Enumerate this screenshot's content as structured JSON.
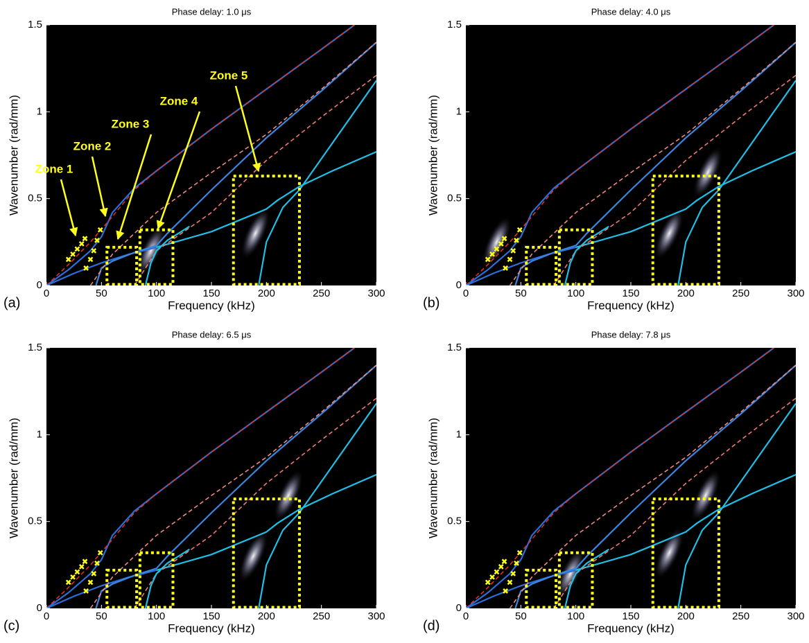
{
  "chart_data": [
    {
      "type": "line",
      "panel_label": "(a)",
      "title": "Phase delay: 1.0 μs",
      "x_label": "Frequency (kHz)",
      "y_label": "Wavenumber (rad/mm)",
      "xlim": [
        0,
        300
      ],
      "ylim": [
        0,
        1.5
      ],
      "xticks": [
        0,
        50,
        100,
        150,
        200,
        250,
        300
      ],
      "yticks": [
        0,
        0.5,
        1,
        1.5
      ],
      "annotations": [
        "Zone 1",
        "Zone 2",
        "Zone 3",
        "Zone 4",
        "Zone 5"
      ],
      "heatmap_peaks": {
        "x": [
          95,
          190
        ],
        "y": [
          0.2,
          0.3
        ]
      },
      "markers": {
        "color": "#ffff1a",
        "x": [
          20,
          24,
          28,
          32,
          35,
          36,
          40,
          43,
          46,
          49
        ],
        "y": [
          0.15,
          0.18,
          0.21,
          0.24,
          0.27,
          0.1,
          0.15,
          0.2,
          0.26,
          0.32
        ]
      },
      "boxes": [
        {
          "x": [
            55,
            82
          ],
          "y": [
            0,
            0.22
          ]
        },
        {
          "x": [
            85,
            115
          ],
          "y": [
            0,
            0.32
          ]
        },
        {
          "x": [
            170,
            230
          ],
          "y": [
            0,
            0.63
          ]
        }
      ],
      "series": [
        {
          "color": "#2a6fdb",
          "x": [
            0,
            20,
            40,
            50,
            60,
            80,
            100,
            150,
            200,
            250,
            280
          ],
          "values": [
            0,
            0.09,
            0.2,
            0.28,
            0.42,
            0.56,
            0.66,
            0.9,
            1.13,
            1.36,
            1.5
          ]
        },
        {
          "color": "#e0302a",
          "dashed": true,
          "x": [
            0,
            20,
            40,
            55,
            80,
            100,
            150,
            200,
            250,
            280
          ],
          "values": [
            0,
            0.12,
            0.25,
            0.36,
            0.55,
            0.66,
            0.9,
            1.13,
            1.36,
            1.5
          ]
        },
        {
          "color": "#2a6fdb",
          "x": [
            0,
            25,
            50,
            75,
            100
          ],
          "values": [
            0,
            0.07,
            0.13,
            0.18,
            0.22
          ]
        },
        {
          "color": "#1fc0e8",
          "x": [
            100,
            150,
            200,
            210,
            230,
            260,
            300
          ],
          "values": [
            0.22,
            0.31,
            0.44,
            0.49,
            0.57,
            0.66,
            0.77
          ]
        },
        {
          "color": "#3a86e0",
          "x": [
            45,
            50,
            60,
            80,
            100,
            110,
            150,
            200,
            250,
            300
          ],
          "values": [
            0,
            0.1,
            0.14,
            0.19,
            0.23,
            0.3,
            0.55,
            0.85,
            1.12,
            1.4
          ]
        },
        {
          "color": "#f08a80",
          "dashed": true,
          "x": [
            40,
            60,
            80,
            100,
            150,
            200,
            250,
            300
          ],
          "values": [
            0,
            0.18,
            0.3,
            0.42,
            0.65,
            0.87,
            1.13,
            1.4
          ]
        },
        {
          "color": "#f07a70",
          "dashed": true,
          "x": [
            80,
            100,
            150,
            200,
            250,
            300
          ],
          "values": [
            0,
            0.2,
            0.42,
            0.72,
            0.97,
            1.21
          ]
        },
        {
          "color": "#1fc0e8",
          "x": [
            90,
            95,
            100,
            110,
            130
          ],
          "values": [
            0,
            0.13,
            0.2,
            0.26,
            0.34
          ]
        },
        {
          "color": "#1fc0e8",
          "x": [
            193,
            200,
            215,
            230,
            260,
            300
          ],
          "values": [
            0,
            0.25,
            0.45,
            0.55,
            0.82,
            1.18
          ]
        }
      ]
    },
    {
      "type": "line",
      "panel_label": "(b)",
      "title": "Phase delay: 4.0 μs",
      "x_label": "Frequency (kHz)",
      "y_label": "Wavenumber (rad/mm)",
      "xlim": [
        0,
        300
      ],
      "ylim": [
        0,
        1.5
      ],
      "xticks": [
        0,
        50,
        100,
        150,
        200,
        250,
        300
      ],
      "yticks": [
        0,
        0.5,
        1,
        1.5
      ],
      "heatmap_peaks": {
        "x": [
          28,
          185,
          220
        ],
        "y": [
          0.25,
          0.3,
          0.65
        ]
      },
      "markers": {
        "color": "#ffff1a",
        "x": [
          20,
          24,
          28,
          32,
          35,
          36,
          40,
          43,
          46,
          49
        ],
        "y": [
          0.15,
          0.18,
          0.21,
          0.24,
          0.27,
          0.1,
          0.15,
          0.2,
          0.26,
          0.32
        ]
      },
      "boxes": [
        {
          "x": [
            55,
            82
          ],
          "y": [
            0,
            0.22
          ]
        },
        {
          "x": [
            85,
            115
          ],
          "y": [
            0,
            0.32
          ]
        },
        {
          "x": [
            170,
            230
          ],
          "y": [
            0,
            0.63
          ]
        }
      ],
      "series": [
        {
          "color": "#2a6fdb",
          "x": [
            0,
            20,
            40,
            50,
            60,
            80,
            100,
            150,
            200,
            250,
            280
          ],
          "values": [
            0,
            0.09,
            0.2,
            0.28,
            0.42,
            0.56,
            0.66,
            0.9,
            1.13,
            1.36,
            1.5
          ]
        },
        {
          "color": "#e0302a",
          "dashed": true,
          "x": [
            0,
            20,
            40,
            55,
            80,
            100,
            150,
            200,
            250,
            280
          ],
          "values": [
            0,
            0.12,
            0.25,
            0.36,
            0.55,
            0.66,
            0.9,
            1.13,
            1.36,
            1.5
          ]
        },
        {
          "color": "#2a6fdb",
          "x": [
            0,
            25,
            50,
            75,
            100
          ],
          "values": [
            0,
            0.07,
            0.13,
            0.18,
            0.22
          ]
        },
        {
          "color": "#1fc0e8",
          "x": [
            100,
            150,
            200,
            210,
            230,
            260,
            300
          ],
          "values": [
            0.22,
            0.31,
            0.44,
            0.49,
            0.57,
            0.66,
            0.77
          ]
        },
        {
          "color": "#3a86e0",
          "x": [
            45,
            50,
            60,
            80,
            100,
            110,
            150,
            200,
            250,
            300
          ],
          "values": [
            0,
            0.1,
            0.14,
            0.19,
            0.23,
            0.3,
            0.55,
            0.85,
            1.12,
            1.4
          ]
        },
        {
          "color": "#f08a80",
          "dashed": true,
          "x": [
            40,
            60,
            80,
            100,
            150,
            200,
            250,
            300
          ],
          "values": [
            0,
            0.18,
            0.3,
            0.42,
            0.65,
            0.87,
            1.13,
            1.4
          ]
        },
        {
          "color": "#f07a70",
          "dashed": true,
          "x": [
            80,
            100,
            150,
            200,
            250,
            300
          ],
          "values": [
            0,
            0.2,
            0.42,
            0.72,
            0.97,
            1.21
          ]
        },
        {
          "color": "#1fc0e8",
          "x": [
            90,
            95,
            100,
            110,
            130
          ],
          "values": [
            0,
            0.13,
            0.2,
            0.26,
            0.34
          ]
        },
        {
          "color": "#1fc0e8",
          "x": [
            193,
            200,
            215,
            230,
            260,
            300
          ],
          "values": [
            0,
            0.25,
            0.45,
            0.55,
            0.82,
            1.18
          ]
        }
      ]
    },
    {
      "type": "line",
      "panel_label": "(c)",
      "title": "Phase delay: 6.5 μs",
      "x_label": "Frequency (kHz)",
      "y_label": "Wavenumber (rad/mm)",
      "xlim": [
        0,
        300
      ],
      "ylim": [
        0,
        1.5
      ],
      "xticks": [
        0,
        50,
        100,
        150,
        200,
        250,
        300
      ],
      "yticks": [
        0,
        0.5,
        1,
        1.5
      ],
      "heatmap_peaks": {
        "x": [
          188,
          220
        ],
        "y": [
          0.3,
          0.65
        ]
      },
      "markers": {
        "color": "#ffff1a",
        "x": [
          20,
          24,
          28,
          32,
          35,
          36,
          40,
          43,
          46,
          49
        ],
        "y": [
          0.15,
          0.18,
          0.21,
          0.24,
          0.27,
          0.1,
          0.15,
          0.2,
          0.26,
          0.32
        ]
      },
      "boxes": [
        {
          "x": [
            55,
            82
          ],
          "y": [
            0,
            0.22
          ]
        },
        {
          "x": [
            85,
            115
          ],
          "y": [
            0,
            0.32
          ]
        },
        {
          "x": [
            170,
            230
          ],
          "y": [
            0,
            0.63
          ]
        }
      ],
      "series": [
        {
          "color": "#2a6fdb",
          "x": [
            0,
            20,
            40,
            50,
            60,
            80,
            100,
            150,
            200,
            250,
            280
          ],
          "values": [
            0,
            0.09,
            0.2,
            0.28,
            0.42,
            0.56,
            0.66,
            0.9,
            1.13,
            1.36,
            1.5
          ]
        },
        {
          "color": "#e0302a",
          "dashed": true,
          "x": [
            0,
            20,
            40,
            55,
            80,
            100,
            150,
            200,
            250,
            280
          ],
          "values": [
            0,
            0.12,
            0.25,
            0.36,
            0.55,
            0.66,
            0.9,
            1.13,
            1.36,
            1.5
          ]
        },
        {
          "color": "#2a6fdb",
          "x": [
            0,
            25,
            50,
            75,
            100
          ],
          "values": [
            0,
            0.07,
            0.13,
            0.18,
            0.22
          ]
        },
        {
          "color": "#1fc0e8",
          "x": [
            100,
            150,
            200,
            210,
            230,
            260,
            300
          ],
          "values": [
            0.22,
            0.31,
            0.44,
            0.49,
            0.57,
            0.66,
            0.77
          ]
        },
        {
          "color": "#3a86e0",
          "x": [
            45,
            50,
            60,
            80,
            100,
            110,
            150,
            200,
            250,
            300
          ],
          "values": [
            0,
            0.1,
            0.14,
            0.19,
            0.23,
            0.3,
            0.55,
            0.85,
            1.12,
            1.4
          ]
        },
        {
          "color": "#f08a80",
          "dashed": true,
          "x": [
            40,
            60,
            80,
            100,
            150,
            200,
            250,
            300
          ],
          "values": [
            0,
            0.18,
            0.3,
            0.42,
            0.65,
            0.87,
            1.13,
            1.4
          ]
        },
        {
          "color": "#f07a70",
          "dashed": true,
          "x": [
            80,
            100,
            150,
            200,
            250,
            300
          ],
          "values": [
            0,
            0.2,
            0.42,
            0.72,
            0.97,
            1.21
          ]
        },
        {
          "color": "#1fc0e8",
          "x": [
            90,
            95,
            100,
            110,
            130
          ],
          "values": [
            0,
            0.13,
            0.2,
            0.26,
            0.34
          ]
        },
        {
          "color": "#1fc0e8",
          "x": [
            193,
            200,
            215,
            230,
            260,
            300
          ],
          "values": [
            0,
            0.25,
            0.45,
            0.55,
            0.82,
            1.18
          ]
        }
      ]
    },
    {
      "type": "line",
      "panel_label": "(d)",
      "title": "Phase delay: 7.8 μs",
      "x_label": "Frequency (kHz)",
      "y_label": "Wavenumber (rad/mm)",
      "xlim": [
        0,
        300
      ],
      "ylim": [
        0,
        1.5
      ],
      "xticks": [
        0,
        50,
        100,
        150,
        200,
        250,
        300
      ],
      "yticks": [
        0,
        0.5,
        1,
        1.5
      ],
      "heatmap_peaks": {
        "x": [
          95,
          185,
          218
        ],
        "y": [
          0.2,
          0.32,
          0.65
        ]
      },
      "markers": {
        "color": "#ffff1a",
        "x": [
          20,
          24,
          28,
          32,
          35,
          36,
          40,
          43,
          46,
          49
        ],
        "y": [
          0.15,
          0.18,
          0.21,
          0.24,
          0.27,
          0.1,
          0.15,
          0.2,
          0.26,
          0.32
        ]
      },
      "boxes": [
        {
          "x": [
            55,
            82
          ],
          "y": [
            0,
            0.22
          ]
        },
        {
          "x": [
            85,
            115
          ],
          "y": [
            0,
            0.32
          ]
        },
        {
          "x": [
            170,
            230
          ],
          "y": [
            0,
            0.63
          ]
        }
      ],
      "series": [
        {
          "color": "#2a6fdb",
          "x": [
            0,
            20,
            40,
            50,
            60,
            80,
            100,
            150,
            200,
            250,
            280
          ],
          "values": [
            0,
            0.09,
            0.2,
            0.28,
            0.42,
            0.56,
            0.66,
            0.9,
            1.13,
            1.36,
            1.5
          ]
        },
        {
          "color": "#e0302a",
          "dashed": true,
          "x": [
            0,
            20,
            40,
            55,
            80,
            100,
            150,
            200,
            250,
            280
          ],
          "values": [
            0,
            0.12,
            0.25,
            0.36,
            0.55,
            0.66,
            0.9,
            1.13,
            1.36,
            1.5
          ]
        },
        {
          "color": "#2a6fdb",
          "x": [
            0,
            25,
            50,
            75,
            100
          ],
          "values": [
            0,
            0.07,
            0.13,
            0.18,
            0.22
          ]
        },
        {
          "color": "#1fc0e8",
          "x": [
            100,
            150,
            200,
            210,
            230,
            260,
            300
          ],
          "values": [
            0.22,
            0.31,
            0.44,
            0.49,
            0.57,
            0.66,
            0.77
          ]
        },
        {
          "color": "#3a86e0",
          "x": [
            45,
            50,
            60,
            80,
            100,
            110,
            150,
            200,
            250,
            300
          ],
          "values": [
            0,
            0.1,
            0.14,
            0.19,
            0.23,
            0.3,
            0.55,
            0.85,
            1.12,
            1.4
          ]
        },
        {
          "color": "#f08a80",
          "dashed": true,
          "x": [
            40,
            60,
            80,
            100,
            150,
            200,
            250,
            300
          ],
          "values": [
            0,
            0.18,
            0.3,
            0.42,
            0.65,
            0.87,
            1.13,
            1.4
          ]
        },
        {
          "color": "#f07a70",
          "dashed": true,
          "x": [
            80,
            100,
            150,
            200,
            250,
            300
          ],
          "values": [
            0,
            0.2,
            0.42,
            0.72,
            0.97,
            1.21
          ]
        },
        {
          "color": "#1fc0e8",
          "x": [
            90,
            95,
            100,
            110,
            130
          ],
          "values": [
            0,
            0.13,
            0.2,
            0.26,
            0.34
          ]
        },
        {
          "color": "#1fc0e8",
          "x": [
            193,
            200,
            215,
            230,
            260,
            300
          ],
          "values": [
            0,
            0.25,
            0.45,
            0.55,
            0.82,
            1.18
          ]
        }
      ]
    }
  ]
}
